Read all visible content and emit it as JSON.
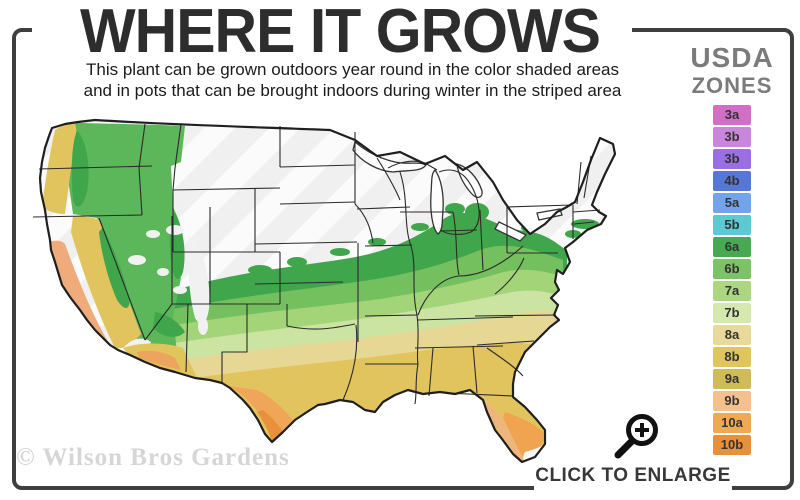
{
  "header": {
    "title": "WHERE IT GROWS",
    "subtitle_line1": "This plant can be grown outdoors year round in the color shaded areas",
    "subtitle_line2": "and in pots that can be brought indoors during winter in the striped area"
  },
  "legend": {
    "title_line1": "USDA",
    "title_line2": "ZONES",
    "zones": [
      {
        "label": "3a",
        "color": "#d16ec6"
      },
      {
        "label": "3b",
        "color": "#cc85dd"
      },
      {
        "label": "3b",
        "color": "#9a6ee4"
      },
      {
        "label": "4b",
        "color": "#5578d6"
      },
      {
        "label": "5a",
        "color": "#72a4ec"
      },
      {
        "label": "5b",
        "color": "#5cc9d3"
      },
      {
        "label": "6a",
        "color": "#47a951"
      },
      {
        "label": "6b",
        "color": "#7cc266"
      },
      {
        "label": "7a",
        "color": "#aad77f"
      },
      {
        "label": "7b",
        "color": "#d5e8ae"
      },
      {
        "label": "8a",
        "color": "#e8da9b"
      },
      {
        "label": "8b",
        "color": "#e0c45c"
      },
      {
        "label": "9a",
        "color": "#cfbc59"
      },
      {
        "label": "9b",
        "color": "#f5c08e"
      },
      {
        "label": "10a",
        "color": "#f0a953"
      },
      {
        "label": "10b",
        "color": "#e8913c"
      }
    ]
  },
  "map": {
    "watermark": "© Wilson Bros Gardens",
    "striped_area_meaning": "grow in pots, bring indoors during winter",
    "shaded_area_meaning": "grows outdoors year round"
  },
  "footer": {
    "enlarge_label": "CLICK TO ENLARGE",
    "magnifier_icon": "zoom-in-magnifier"
  }
}
